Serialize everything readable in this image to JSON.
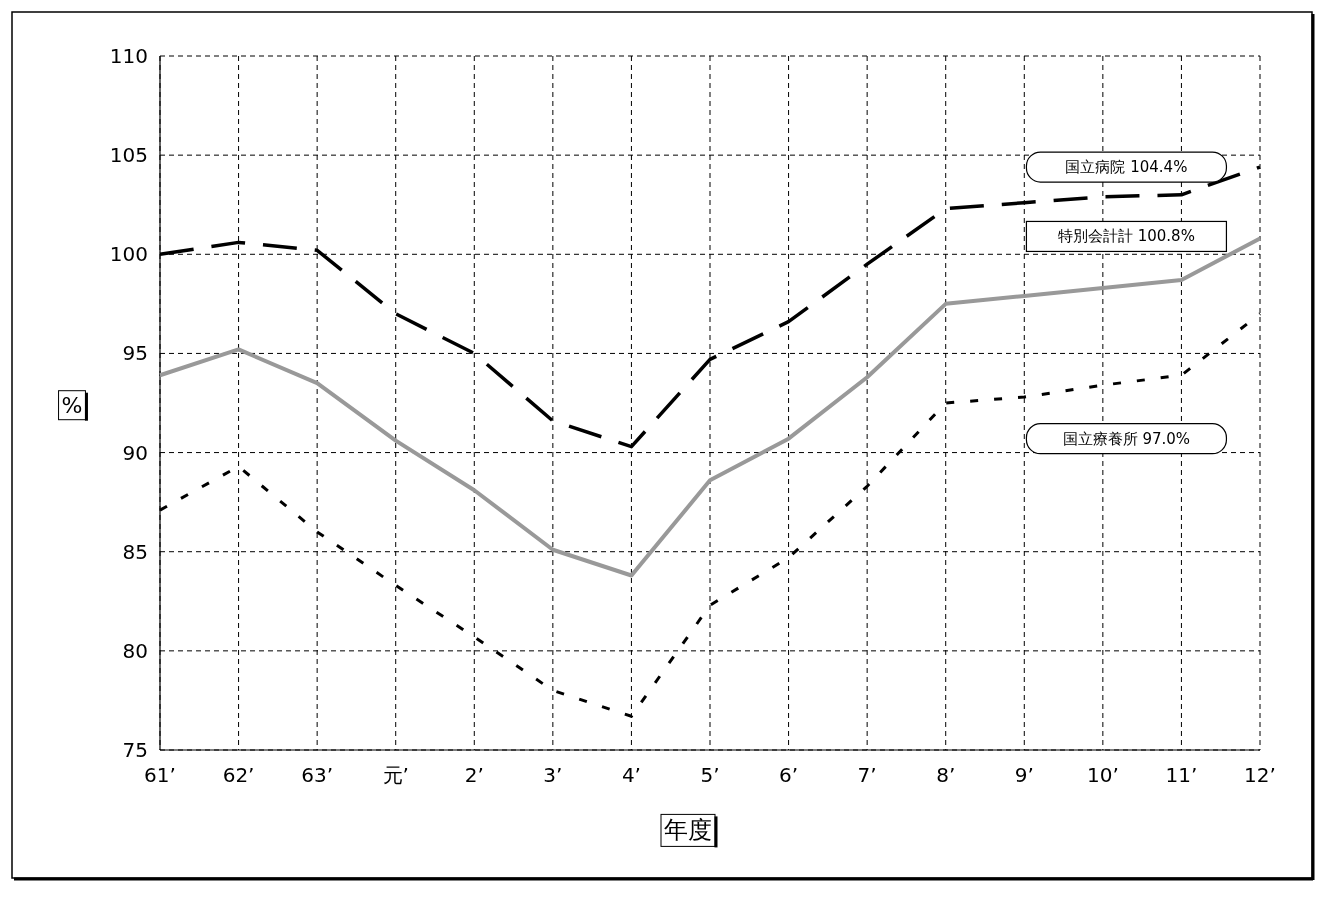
{
  "chart_data": {
    "type": "line",
    "xlabel": "年度",
    "ylabel": "%",
    "categories": [
      "61’",
      "62’",
      "63’",
      "元’",
      "2’",
      "3’",
      "4’",
      "5’",
      "6’",
      "7’",
      "8’",
      "9’",
      "10’",
      "11’",
      "12’"
    ],
    "series": [
      {
        "name": "国立病院 104.4%",
        "color": "#000000",
        "line_style": "dashed",
        "values": [
          100.0,
          100.6,
          100.2,
          97.0,
          95.0,
          91.6,
          90.3,
          94.7,
          96.6,
          99.5,
          102.3,
          102.6,
          102.9,
          103.0,
          104.4
        ]
      },
      {
        "name": "特別会計計 100.8%",
        "color": "#999999",
        "line_style": "solid",
        "values": [
          93.9,
          95.2,
          93.5,
          90.6,
          88.1,
          85.1,
          83.8,
          88.6,
          90.7,
          93.8,
          97.5,
          97.9,
          98.3,
          98.7,
          100.8
        ]
      },
      {
        "name": "国立療養所 97.0%",
        "color": "#000000",
        "line_style": "dotted",
        "values": [
          87.1,
          89.3,
          86.0,
          83.3,
          80.7,
          78.0,
          76.7,
          82.3,
          84.7,
          88.3,
          92.5,
          92.8,
          93.4,
          93.9,
          97.0
        ]
      }
    ],
    "ylim": [
      75,
      110
    ],
    "yticks": [
      75,
      80,
      85,
      90,
      95,
      100,
      105,
      110
    ],
    "grid": true,
    "legend": false,
    "marker": "none"
  }
}
